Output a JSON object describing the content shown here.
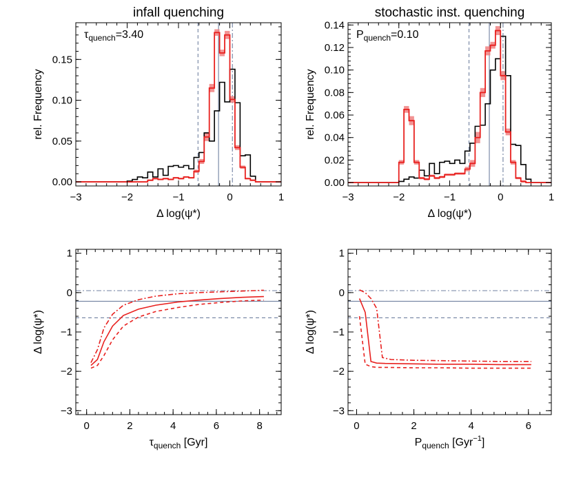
{
  "colors": {
    "model": "#e8201e",
    "model_band": "#f08080",
    "data": "#000000",
    "ref_line": "#7080a0"
  },
  "chart_data": [
    {
      "type": "histogram",
      "title": "infall quenching",
      "annotation_base": "τ",
      "annotation_sub": "quench",
      "annotation_rest": "=3.40",
      "xlabel": "Δ log(ψ*)",
      "ylabel": "rel. Frequency",
      "xlim": [
        -3,
        1
      ],
      "ylim": [
        -0.005,
        0.195
      ],
      "xticks": [
        -3,
        -2,
        -1,
        0,
        1
      ],
      "xtick_labels": [
        "−3",
        "−2",
        "−1",
        "0",
        "1"
      ],
      "yticks": [
        0,
        0.05,
        0.1,
        0.15
      ],
      "ytick_labels": [
        "0.00",
        "0.05",
        "0.10",
        "0.15"
      ],
      "bin_edges": [
        -3.0,
        -2.9,
        -2.8,
        -2.7,
        -2.6,
        -2.5,
        -2.4,
        -2.3,
        -2.2,
        -2.1,
        -2.0,
        -1.9,
        -1.8,
        -1.7,
        -1.6,
        -1.5,
        -1.4,
        -1.3,
        -1.2,
        -1.1,
        -1.0,
        -0.9,
        -0.8,
        -0.7,
        -0.6,
        -0.5,
        -0.4,
        -0.3,
        -0.2,
        -0.1,
        0.0,
        0.1,
        0.2,
        0.3,
        0.4,
        0.5,
        0.6,
        0.7,
        0.8,
        0.9,
        1.0
      ],
      "observed": [
        0,
        0,
        0,
        0,
        0,
        0,
        0,
        0,
        0,
        0,
        0.001,
        0.003,
        0.006,
        0.005,
        0.012,
        0.006,
        0.016,
        0.008,
        0.019,
        0.02,
        0.018,
        0.02,
        0.016,
        0.03,
        0.036,
        0.06,
        0.05,
        0.087,
        0.122,
        0.098,
        0.138,
        0.097,
        0.032,
        0.033,
        0.007,
        0,
        0,
        0,
        0,
        0
      ],
      "model": [
        0,
        0,
        0,
        0,
        0,
        0,
        0,
        0,
        0,
        0,
        0,
        0,
        0,
        0,
        0.002,
        0.004,
        0.003,
        0.004,
        0.003,
        0.005,
        0.004,
        0.006,
        0.005,
        0.013,
        0.025,
        0.055,
        0.115,
        0.183,
        0.158,
        0.18,
        0.101,
        0.042,
        0.018,
        0.004,
        0.002,
        0,
        0,
        0,
        0,
        0
      ],
      "model_band": [
        0,
        0,
        0,
        0,
        0,
        0,
        0,
        0,
        0,
        0,
        0,
        0,
        0,
        0,
        0.001,
        0.001,
        0.001,
        0.001,
        0.001,
        0.001,
        0.001,
        0.001,
        0.001,
        0.002,
        0.003,
        0.005,
        0.005,
        0.004,
        0.004,
        0.005,
        0.004,
        0.003,
        0.002,
        0.001,
        0.001,
        0,
        0,
        0,
        0,
        0
      ],
      "vlines": [
        {
          "x": -0.62,
          "style": "dashed"
        },
        {
          "x": -0.22,
          "style": "solid"
        },
        {
          "x": 0.05,
          "style": "dashdot"
        }
      ]
    },
    {
      "type": "histogram",
      "title": "stochastic inst. quenching",
      "annotation_base": "P",
      "annotation_sub": "quench",
      "annotation_rest": "=0.10",
      "xlabel": "Δ log(ψ*)",
      "ylabel": "rel. Frequency",
      "xlim": [
        -3,
        1
      ],
      "ylim": [
        -0.003,
        0.142
      ],
      "xticks": [
        -3,
        -2,
        -1,
        0,
        1
      ],
      "xtick_labels": [
        "−3",
        "−2",
        "−1",
        "0",
        "1"
      ],
      "yticks": [
        0,
        0.02,
        0.04,
        0.06,
        0.08,
        0.1,
        0.12,
        0.14
      ],
      "ytick_labels": [
        "0.00",
        "0.02",
        "0.04",
        "0.06",
        "0.08",
        "0.10",
        "0.12",
        "0.14"
      ],
      "bin_edges": [
        -3.0,
        -2.9,
        -2.8,
        -2.7,
        -2.6,
        -2.5,
        -2.4,
        -2.3,
        -2.2,
        -2.1,
        -2.0,
        -1.9,
        -1.8,
        -1.7,
        -1.6,
        -1.5,
        -1.4,
        -1.3,
        -1.2,
        -1.1,
        -1.0,
        -0.9,
        -0.8,
        -0.7,
        -0.6,
        -0.5,
        -0.4,
        -0.3,
        -0.2,
        -0.1,
        0.0,
        0.1,
        0.2,
        0.3,
        0.4,
        0.5,
        0.6,
        0.7,
        0.8,
        0.9,
        1.0
      ],
      "observed": [
        0,
        0,
        0,
        0,
        0,
        0,
        0,
        0,
        0,
        0,
        0.001,
        0.003,
        0.005,
        0.004,
        0.011,
        0.006,
        0.017,
        0.008,
        0.018,
        0.019,
        0.017,
        0.02,
        0.017,
        0.028,
        0.035,
        0.05,
        0.051,
        0.07,
        0.1,
        0.11,
        0.13,
        0.095,
        0.034,
        0.033,
        0.016,
        0.003,
        0,
        0,
        0,
        0
      ],
      "model": [
        0,
        0,
        0,
        0,
        0,
        0,
        0,
        0,
        0,
        0,
        0.018,
        0.065,
        0.055,
        0.018,
        0.004,
        0.003,
        0.006,
        0.004,
        0.005,
        0.007,
        0.007,
        0.008,
        0.008,
        0.012,
        0.017,
        0.04,
        0.08,
        0.117,
        0.122,
        0.135,
        0.095,
        0.045,
        0.018,
        0.004,
        0.001,
        0,
        0,
        0,
        0,
        0
      ],
      "model_band": [
        0,
        0,
        0,
        0,
        0,
        0,
        0,
        0,
        0,
        0,
        0.002,
        0.003,
        0.004,
        0.002,
        0.001,
        0.001,
        0.001,
        0.001,
        0.001,
        0.001,
        0.001,
        0.001,
        0.001,
        0.002,
        0.003,
        0.005,
        0.004,
        0.004,
        0.003,
        0.004,
        0.004,
        0.003,
        0.002,
        0.001,
        0.001,
        0,
        0,
        0,
        0,
        0
      ],
      "vlines": [
        {
          "x": -0.62,
          "style": "dashed"
        },
        {
          "x": -0.22,
          "style": "solid"
        },
        {
          "x": 0.05,
          "style": "dashdot"
        }
      ]
    },
    {
      "type": "line",
      "title": "",
      "xlabel_base": "τ",
      "xlabel_sub": "quench",
      "xlabel_rest": " [Gyr]",
      "xlabel_sup": "",
      "xlabel_tail": "",
      "ylabel": "Δ log(ψ*)",
      "xlim": [
        -0.5,
        9
      ],
      "ylim": [
        -3.1,
        1.1
      ],
      "xticks": [
        0,
        2,
        4,
        6,
        8
      ],
      "xtick_labels": [
        "0",
        "2",
        "4",
        "6",
        "8"
      ],
      "yticks": [
        -3,
        -2,
        -1,
        0,
        1
      ],
      "ytick_labels": [
        "−3",
        "−2",
        "−1",
        "0",
        "1"
      ],
      "hlines": [
        {
          "y": 0.05,
          "style": "dashdot"
        },
        {
          "y": -0.22,
          "style": "solid"
        },
        {
          "y": -0.64,
          "style": "dashed"
        }
      ],
      "series": [
        {
          "style": "solid",
          "x": [
            0.2,
            0.5,
            0.8,
            1.2,
            1.7,
            2.4,
            3.2,
            4.2,
            5.2,
            6.2,
            7.2,
            8.2
          ],
          "y": [
            -1.85,
            -1.7,
            -1.25,
            -0.85,
            -0.58,
            -0.42,
            -0.32,
            -0.24,
            -0.19,
            -0.15,
            -0.12,
            -0.1
          ]
        },
        {
          "style": "dashdot",
          "x": [
            0.2,
            0.5,
            0.8,
            1.2,
            1.7,
            2.4,
            3.2,
            4.2,
            5.2,
            6.2,
            7.2,
            8.2
          ],
          "y": [
            -1.78,
            -1.45,
            -0.9,
            -0.55,
            -0.32,
            -0.18,
            -0.09,
            -0.03,
            0.0,
            0.02,
            0.04,
            0.06
          ]
        },
        {
          "style": "dashed",
          "x": [
            0.2,
            0.5,
            0.8,
            1.2,
            1.7,
            2.4,
            3.2,
            4.2,
            5.2,
            6.2,
            7.2,
            8.2
          ],
          "y": [
            -1.92,
            -1.85,
            -1.6,
            -1.2,
            -0.85,
            -0.62,
            -0.48,
            -0.38,
            -0.3,
            -0.25,
            -0.21,
            -0.19
          ]
        }
      ]
    },
    {
      "type": "line",
      "title": "",
      "xlabel_base": "P",
      "xlabel_sub": "quench",
      "xlabel_rest": " [Gyr",
      "xlabel_sup": "−1",
      "xlabel_tail": "]",
      "ylabel": "Δ log(ψ*)",
      "xlim": [
        -0.3,
        6.8
      ],
      "ylim": [
        -3.1,
        1.1
      ],
      "xticks": [
        0,
        2,
        4,
        6
      ],
      "xtick_labels": [
        "0",
        "2",
        "4",
        "6"
      ],
      "yticks": [
        -3,
        -2,
        -1,
        0,
        1
      ],
      "ytick_labels": [
        "−3",
        "−2",
        "−1",
        "0",
        "1"
      ],
      "hlines": [
        {
          "y": 0.05,
          "style": "dashdot"
        },
        {
          "y": -0.22,
          "style": "solid"
        },
        {
          "y": -0.64,
          "style": "dashed"
        }
      ],
      "series": [
        {
          "style": "solid",
          "x": [
            0.1,
            0.3,
            0.5,
            0.7,
            1.0,
            2.0,
            3.0,
            4.0,
            5.0,
            6.1
          ],
          "y": [
            -0.15,
            -0.5,
            -1.75,
            -1.79,
            -1.8,
            -1.81,
            -1.82,
            -1.82,
            -1.83,
            -1.83
          ]
        },
        {
          "style": "dashdot",
          "x": [
            0.1,
            0.3,
            0.5,
            0.7,
            0.9,
            1.2,
            2.0,
            3.0,
            4.0,
            5.0,
            6.1
          ],
          "y": [
            0.07,
            0.0,
            -0.15,
            -0.4,
            -1.65,
            -1.7,
            -1.72,
            -1.73,
            -1.74,
            -1.75,
            -1.75
          ]
        },
        {
          "style": "dashed",
          "x": [
            0.1,
            0.3,
            0.5,
            0.7,
            1.0,
            2.0,
            3.0,
            4.0,
            5.0,
            6.1
          ],
          "y": [
            -0.6,
            -1.82,
            -1.88,
            -1.9,
            -1.9,
            -1.91,
            -1.91,
            -1.92,
            -1.92,
            -1.92
          ]
        }
      ]
    }
  ]
}
